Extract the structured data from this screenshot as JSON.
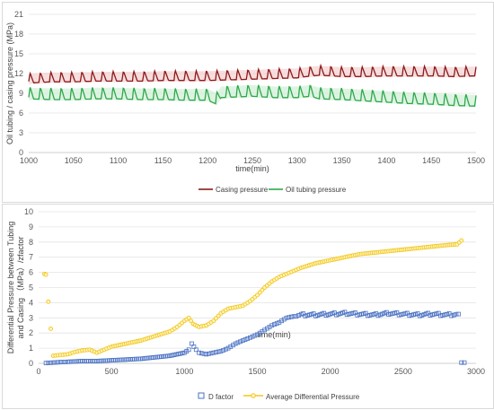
{
  "chart_data": [
    {
      "type": "line",
      "xlabel": "time(min)",
      "ylabel": "Oil tubing / casing pressure (MPa)",
      "xlim": [
        1000,
        1500
      ],
      "ylim": [
        0,
        21
      ],
      "x_ticks": [
        "1000",
        "1050",
        "1100",
        "1150",
        "1200",
        "1250",
        "1300",
        "1350",
        "1400",
        "1450",
        "1500"
      ],
      "y_ticks": [
        "0",
        "3",
        "6",
        "9",
        "12",
        "15",
        "18",
        "21"
      ],
      "grid": "horizontal",
      "legend_position": "bottom",
      "colors": {
        "casing": "#8b1a1a",
        "tubing": "#2ea84a",
        "casing_band": "#f4c8c8",
        "tubing_band": "#c8ecd0"
      },
      "series": [
        {
          "name": "Casing pressure",
          "color": "#8b1a1a",
          "x": [
            1000,
            1025,
            1050,
            1075,
            1100,
            1125,
            1150,
            1175,
            1200,
            1225,
            1250,
            1275,
            1300,
            1310,
            1325,
            1350,
            1375,
            1400,
            1425,
            1450,
            1475,
            1500
          ],
          "y": [
            10.8,
            11.0,
            11.0,
            11.1,
            11.1,
            11.1,
            11.2,
            11.2,
            11.2,
            11.3,
            11.4,
            11.5,
            11.6,
            11.8,
            12.0,
            11.8,
            11.8,
            11.9,
            11.9,
            11.9,
            11.8,
            11.9
          ],
          "spike": 1.3
        },
        {
          "name": "Oil tubing pressure",
          "color": "#2ea84a",
          "x": [
            1000,
            1025,
            1050,
            1075,
            1100,
            1125,
            1150,
            1175,
            1200,
            1210,
            1215,
            1250,
            1275,
            1300,
            1315,
            1325,
            1350,
            1375,
            1400,
            1425,
            1450,
            1475,
            1500
          ],
          "y": [
            8.4,
            8.3,
            8.3,
            8.4,
            8.4,
            8.3,
            8.3,
            8.2,
            8.2,
            7.6,
            8.6,
            8.8,
            8.6,
            8.6,
            8.8,
            8.4,
            8.3,
            8.1,
            7.9,
            7.7,
            7.6,
            7.4,
            7.3
          ],
          "spike": 1.6
        }
      ]
    },
    {
      "type": "scatter",
      "xlabel": "time(min)",
      "ylabel": "Differential Pressure between Tubing and Casing （MPa）/zfactor",
      "xlim": [
        0,
        3000
      ],
      "ylim": [
        0,
        10
      ],
      "x_ticks": [
        "0",
        "500",
        "1000",
        "1500",
        "2000",
        "2500",
        "3000"
      ],
      "y_ticks": [
        "0",
        "1",
        "2",
        "3",
        "4",
        "5",
        "6",
        "7",
        "8",
        "9",
        "10"
      ],
      "grid": "horizontal",
      "legend_position": "bottom",
      "series": [
        {
          "name": "D factor",
          "color": "#4a72c4",
          "marker": "square",
          "x": [
            50,
            100,
            150,
            200,
            300,
            400,
            500,
            600,
            700,
            800,
            900,
            1000,
            1030,
            1050,
            1080,
            1100,
            1150,
            1200,
            1250,
            1300,
            1350,
            1400,
            1450,
            1500,
            1550,
            1600,
            1650,
            1700,
            1750,
            1800,
            1900,
            2000,
            2100,
            2200,
            2300,
            2400,
            2500,
            2600,
            2700,
            2800,
            2880,
            2900,
            2920
          ],
          "y": [
            0.02,
            0.05,
            0.08,
            0.1,
            0.15,
            0.15,
            0.2,
            0.25,
            0.3,
            0.4,
            0.5,
            0.7,
            0.9,
            1.3,
            0.9,
            0.7,
            0.6,
            0.7,
            0.8,
            1.0,
            1.3,
            1.5,
            1.7,
            1.9,
            2.2,
            2.5,
            2.7,
            3.0,
            3.1,
            3.2,
            3.2,
            3.25,
            3.3,
            3.25,
            3.2,
            3.3,
            3.25,
            3.2,
            3.25,
            3.2,
            3.25,
            0.05,
            0.05
          ]
        },
        {
          "name": "Average Differential Pressure",
          "color": "#f2c71c",
          "marker": "circle",
          "x": [
            40,
            50,
            100,
            150,
            200,
            250,
            300,
            350,
            400,
            450,
            500,
            600,
            700,
            800,
            900,
            950,
            1000,
            1030,
            1060,
            1100,
            1150,
            1200,
            1250,
            1300,
            1350,
            1400,
            1450,
            1500,
            1550,
            1600,
            1650,
            1700,
            1750,
            1800,
            1900,
            2000,
            2100,
            2200,
            2300,
            2400,
            2500,
            2600,
            2700,
            2800,
            2870,
            2900
          ],
          "y": [
            5.9,
            5.85,
            0.5,
            0.55,
            0.6,
            0.75,
            0.85,
            0.9,
            0.7,
            0.9,
            1.1,
            1.3,
            1.5,
            1.8,
            2.1,
            2.4,
            2.8,
            3.0,
            2.6,
            2.4,
            2.5,
            2.8,
            3.3,
            3.6,
            3.7,
            3.8,
            4.1,
            4.5,
            5.0,
            5.4,
            5.7,
            5.9,
            6.1,
            6.3,
            6.6,
            6.8,
            7.0,
            7.2,
            7.3,
            7.4,
            7.5,
            7.6,
            7.7,
            7.8,
            7.85,
            8.1
          ]
        }
      ]
    }
  ]
}
